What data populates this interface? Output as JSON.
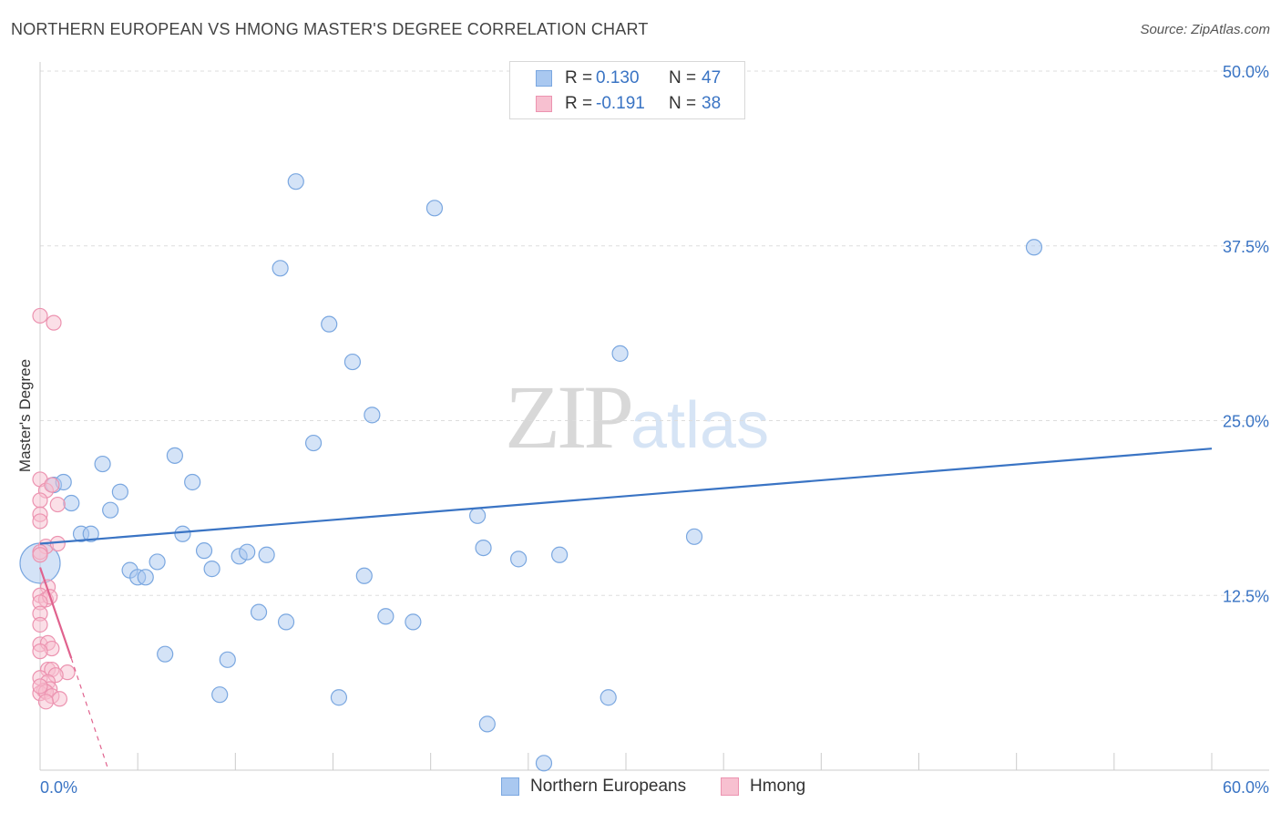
{
  "title": "NORTHERN EUROPEAN VS HMONG MASTER'S DEGREE CORRELATION CHART",
  "source": "Source: ZipAtlas.com",
  "watermark": {
    "zip": "ZIP",
    "atlas": "atlas"
  },
  "legend": {
    "rows": [
      {
        "r_label": "R =",
        "r_value": "0.130",
        "n_label": "N =",
        "n_value": "47",
        "color": "#a9c8f0",
        "border": "#7aa7e0"
      },
      {
        "r_label": "R =",
        "r_value": "-0.191",
        "n_label": "N =",
        "n_value": "38",
        "color": "#f7c0d0",
        "border": "#ec93b0"
      }
    ]
  },
  "bottom_legend": [
    {
      "label": "Northern Europeans",
      "color": "#a9c8f0",
      "border": "#7aa7e0"
    },
    {
      "label": "Hmong",
      "color": "#f7c0d0",
      "border": "#ec93b0"
    }
  ],
  "chart_data": {
    "type": "scatter",
    "title": "NORTHERN EUROPEAN VS HMONG MASTER'S DEGREE CORRELATION CHART",
    "xlabel": "",
    "ylabel": "Master's Degree",
    "xlim": [
      0,
      60
    ],
    "ylim": [
      0,
      50
    ],
    "x_tick_labels": [
      "0.0%",
      "60.0%"
    ],
    "y_tick_labels": [
      "12.5%",
      "25.0%",
      "37.5%",
      "50.0%"
    ],
    "y_ticks": [
      12.5,
      25.0,
      37.5,
      50.0
    ],
    "grid": true,
    "series": [
      {
        "name": "Northern Europeans",
        "color": "#a9c8f0",
        "stroke": "#7aa7e0",
        "trend": {
          "x": [
            0,
            60
          ],
          "y": [
            16.2,
            23.0
          ],
          "color": "#3a74c4"
        },
        "points": [
          [
            0.0,
            14.8
          ],
          [
            0.7,
            20.4
          ],
          [
            1.2,
            20.6
          ],
          [
            1.6,
            19.1
          ],
          [
            2.1,
            16.9
          ],
          [
            2.6,
            16.9
          ],
          [
            3.2,
            21.9
          ],
          [
            3.6,
            18.6
          ],
          [
            4.1,
            19.9
          ],
          [
            4.6,
            14.3
          ],
          [
            5.0,
            13.8
          ],
          [
            5.4,
            13.8
          ],
          [
            6.0,
            14.9
          ],
          [
            6.4,
            8.3
          ],
          [
            6.9,
            22.5
          ],
          [
            7.3,
            16.9
          ],
          [
            7.8,
            20.6
          ],
          [
            8.4,
            15.7
          ],
          [
            8.8,
            14.4
          ],
          [
            9.2,
            5.4
          ],
          [
            9.6,
            7.9
          ],
          [
            10.2,
            15.3
          ],
          [
            10.6,
            15.6
          ],
          [
            11.2,
            11.3
          ],
          [
            11.6,
            15.4
          ],
          [
            12.3,
            35.9
          ],
          [
            12.6,
            10.6
          ],
          [
            13.1,
            42.1
          ],
          [
            14.0,
            23.4
          ],
          [
            14.8,
            31.9
          ],
          [
            15.3,
            5.2
          ],
          [
            16.0,
            29.2
          ],
          [
            16.6,
            13.9
          ],
          [
            17.0,
            25.4
          ],
          [
            17.7,
            11.0
          ],
          [
            19.1,
            10.6
          ],
          [
            20.2,
            40.2
          ],
          [
            22.4,
            18.2
          ],
          [
            22.7,
            15.9
          ],
          [
            22.9,
            3.3
          ],
          [
            24.5,
            15.1
          ],
          [
            25.8,
            0.5
          ],
          [
            26.6,
            15.4
          ],
          [
            29.1,
            5.2
          ],
          [
            29.7,
            29.8
          ],
          [
            33.5,
            16.7
          ],
          [
            50.9,
            37.4
          ]
        ]
      },
      {
        "name": "Hmong",
        "color": "#f7c0d0",
        "stroke": "#ec93b0",
        "trend": {
          "x": [
            0,
            1.6
          ],
          "y": [
            14.5,
            8.0
          ],
          "color": "#e0628e",
          "dash_to": {
            "x": 3.5,
            "y": 0
          }
        },
        "points": [
          [
            0.0,
            32.5
          ],
          [
            0.7,
            32.0
          ],
          [
            0.0,
            20.8
          ],
          [
            0.3,
            20.0
          ],
          [
            0.6,
            20.4
          ],
          [
            0.0,
            19.3
          ],
          [
            0.9,
            19.0
          ],
          [
            0.0,
            18.3
          ],
          [
            0.0,
            17.8
          ],
          [
            0.3,
            16.0
          ],
          [
            0.9,
            16.2
          ],
          [
            0.0,
            15.6
          ],
          [
            0.0,
            15.4
          ],
          [
            0.4,
            13.1
          ],
          [
            0.0,
            12.5
          ],
          [
            0.3,
            12.2
          ],
          [
            0.5,
            12.4
          ],
          [
            0.0,
            12.0
          ],
          [
            0.0,
            11.2
          ],
          [
            0.0,
            10.4
          ],
          [
            0.0,
            9.0
          ],
          [
            0.4,
            9.1
          ],
          [
            0.6,
            8.7
          ],
          [
            0.0,
            8.5
          ],
          [
            0.4,
            7.2
          ],
          [
            0.6,
            7.2
          ],
          [
            1.4,
            7.0
          ],
          [
            0.8,
            6.8
          ],
          [
            0.0,
            6.6
          ],
          [
            0.4,
            6.3
          ],
          [
            0.2,
            5.7
          ],
          [
            0.5,
            5.8
          ],
          [
            0.0,
            5.5
          ],
          [
            0.3,
            5.6
          ],
          [
            0.6,
            5.3
          ],
          [
            1.0,
            5.1
          ],
          [
            0.0,
            6.0
          ],
          [
            0.3,
            4.9
          ]
        ]
      }
    ]
  }
}
